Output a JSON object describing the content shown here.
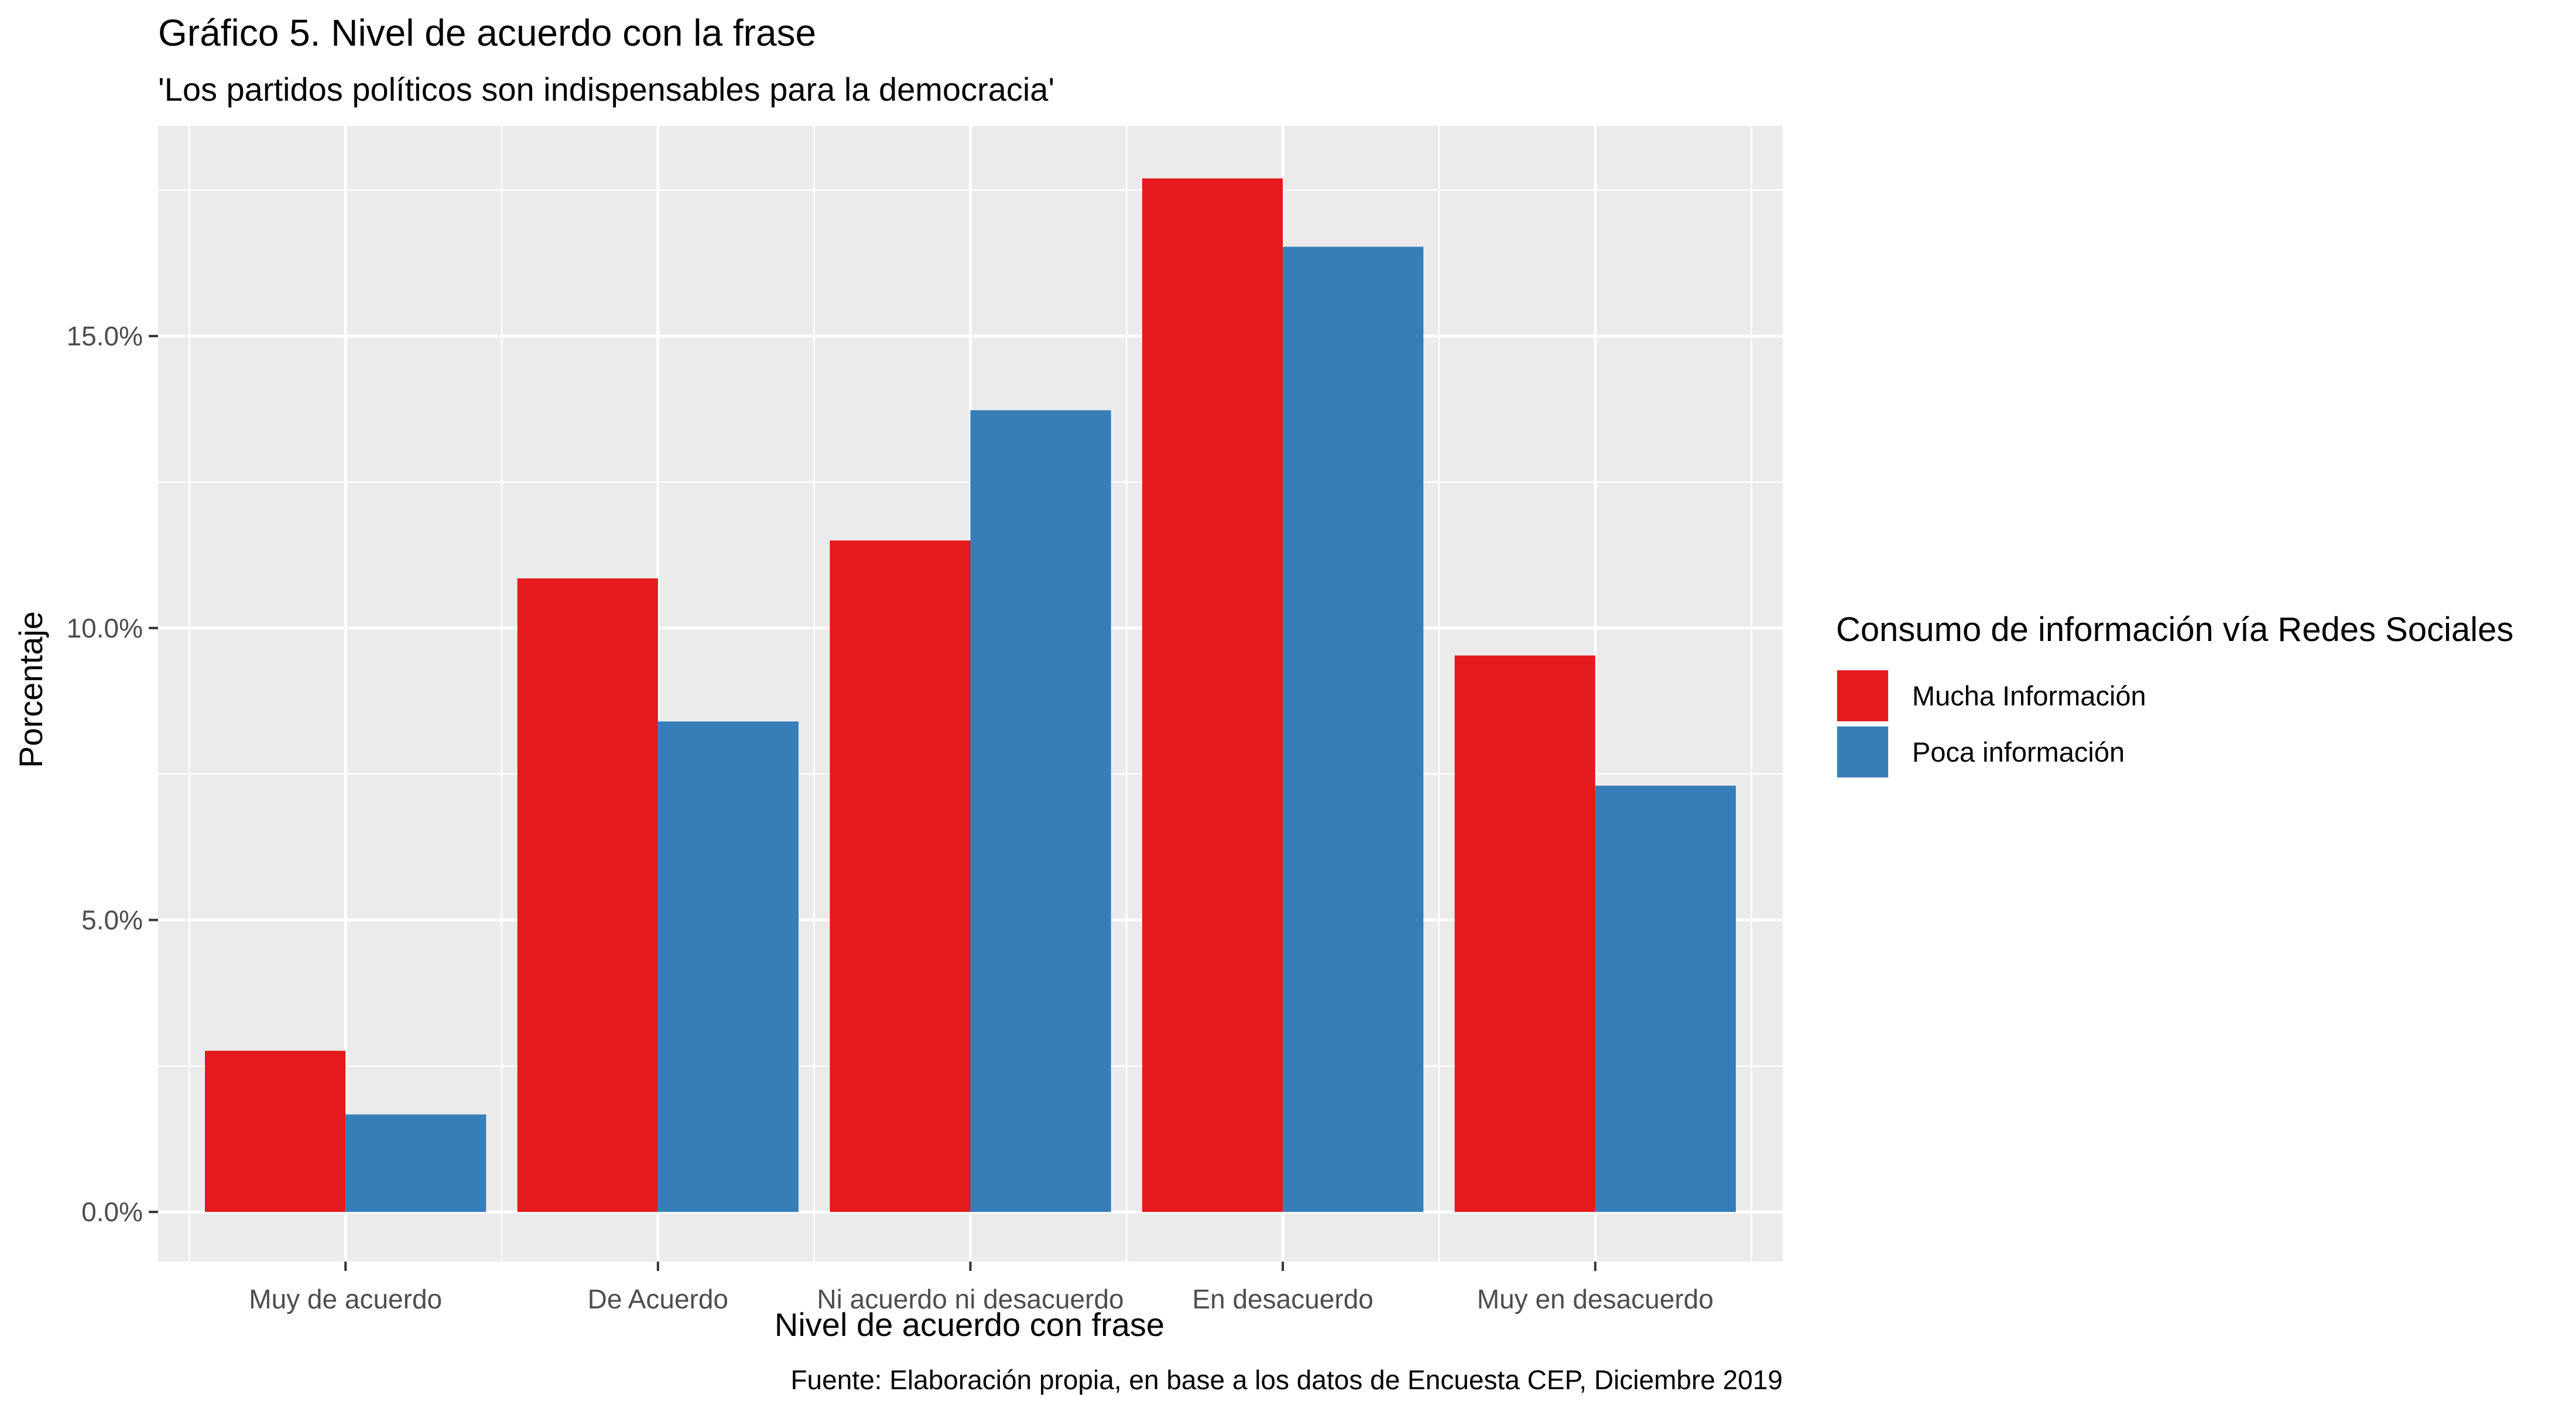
{
  "chart_data": {
    "type": "bar",
    "title": "Gráfico 5. Nivel de acuerdo con la frase",
    "subtitle": "'Los partidos políticos son indispensables para la democracia'",
    "xlabel": "Nivel de acuerdo con frase",
    "ylabel": "Porcentaje",
    "caption": "Fuente: Elaboración propia, en base a los datos de Encuesta CEP, Diciembre 2019",
    "categories": [
      "Muy de acuerdo",
      "De Acuerdo",
      "Ni acuerdo ni desacuerdo",
      "En desacuerdo",
      "Muy en desacuerdo"
    ],
    "series": [
      {
        "name": "Mucha Información",
        "color": "#e41a1c",
        "values": [
          2.76,
          10.85,
          11.5,
          17.7,
          9.53
        ]
      },
      {
        "name": "Poca información",
        "color": "#377eb8",
        "values": [
          1.67,
          8.4,
          13.73,
          16.53,
          7.3
        ]
      }
    ],
    "ylim": [
      -0.85,
      18.6
    ],
    "yticks": [
      0,
      5,
      10,
      15
    ],
    "ytick_labels": [
      "0.0%",
      "5.0%",
      "10.0%",
      "15.0%"
    ],
    "legend_title": "Consumo de información vía Redes Sociales",
    "legend_position": "right",
    "grid": true,
    "panel_background": "#ebebeb",
    "grid_color": "#ffffff"
  }
}
